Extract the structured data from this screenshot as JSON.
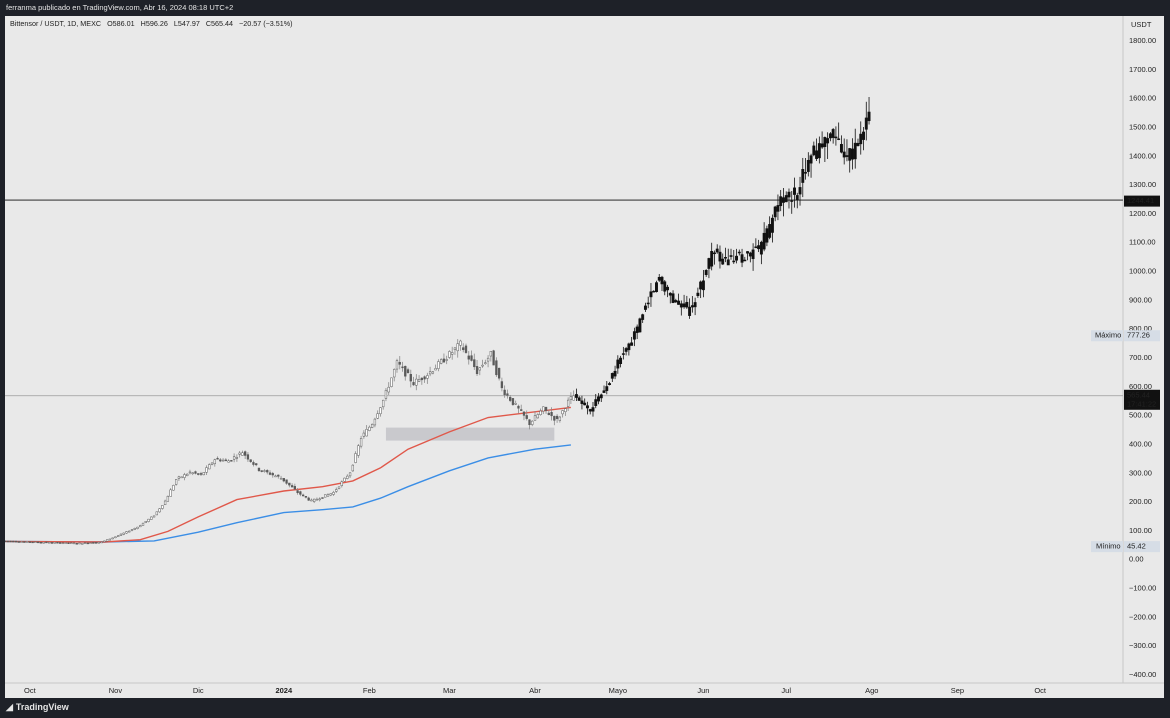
{
  "header": {
    "published_text": "ferranma publicado en TradingView.com, Abr 16, 2024 08:18 UTC+2"
  },
  "legend": {
    "symbol": "Bittensor / USDT, 1D, MEXC",
    "open": "O586.01",
    "high": "H596.26",
    "low": "L547.97",
    "close": "C565.44",
    "change": "−20.57 (−3.51%)"
  },
  "footer": {
    "brand": "TradingView"
  },
  "colors": {
    "background": "#e9e9e9",
    "candles": "#111111",
    "sma_red": "#e0584a",
    "sma_blue": "#3b8ee6",
    "zone": "#c9c9cd",
    "label_dark": "#111111",
    "label_light": "#d6dde6"
  },
  "chart_data": {
    "type": "candlestick",
    "title": "Bittensor / USDT, 1D, MEXC",
    "y_axis_unit": "USDT",
    "y_ticks": [
      1800,
      1700,
      1600,
      1500,
      1400,
      1300,
      1200,
      1100,
      1000,
      900,
      800,
      700,
      600,
      500,
      400,
      300,
      200,
      100,
      0,
      -100,
      -200,
      -300,
      -400
    ],
    "y_tick_labels": [
      "1800.00",
      "1700.00",
      "1600.00",
      "1500.00",
      "1400.00",
      "1300.00",
      "1200.00",
      "1100.00",
      "1000.00",
      "900.00",
      "800.00",
      "700.00",
      "600.00",
      "500.00",
      "400.00",
      "300.00",
      "200.00",
      "100.00",
      "0.00",
      "−100.00",
      "−200.00",
      "−300.00",
      "−400.00"
    ],
    "ylim": [
      -430,
      1880
    ],
    "x_axis_labels": [
      {
        "label": "Oct",
        "date": "2023-10-01"
      },
      {
        "label": "Nov",
        "date": "2023-11-01"
      },
      {
        "label": "Dic",
        "date": "2023-12-01"
      },
      {
        "label": "2024",
        "date": "2024-01-01",
        "bold": true
      },
      {
        "label": "Feb",
        "date": "2024-02-01"
      },
      {
        "label": "Mar",
        "date": "2024-03-01"
      },
      {
        "label": "Abr",
        "date": "2024-04-01"
      },
      {
        "label": "Mayo",
        "date": "2024-05-01"
      },
      {
        "label": "Jun",
        "date": "2024-06-01"
      },
      {
        "label": "Jul",
        "date": "2024-07-01"
      },
      {
        "label": "Ago",
        "date": "2024-08-01"
      },
      {
        "label": "Sep",
        "date": "2024-09-01"
      },
      {
        "label": "Oct",
        "date": "2024-10-01"
      }
    ],
    "x_range": [
      "2023-09-22",
      "2024-10-31"
    ],
    "price_labels": {
      "horizontal_level": {
        "value": 1244.41,
        "label": "1244.41"
      },
      "current": {
        "value": 565.44,
        "label": "565.44",
        "countdown": "17:41:22"
      },
      "max": {
        "value": 777.26,
        "label": "777.26",
        "title": "Máximo"
      },
      "min": {
        "value": 45.42,
        "label": "45.42",
        "title": "Mínimo"
      }
    },
    "zone": {
      "from": "2024-02-07",
      "to": "2024-04-08",
      "low": 410,
      "high": 455
    },
    "historical_path": [
      [
        "2023-09-22",
        62
      ],
      [
        "2023-10-05",
        58
      ],
      [
        "2023-10-20",
        54
      ],
      [
        "2023-10-28",
        58
      ],
      [
        "2023-11-03",
        80
      ],
      [
        "2023-11-10",
        110
      ],
      [
        "2023-11-16",
        150
      ],
      [
        "2023-11-20",
        200
      ],
      [
        "2023-11-24",
        275
      ],
      [
        "2023-11-29",
        300
      ],
      [
        "2023-12-03",
        290
      ],
      [
        "2023-12-08",
        345
      ],
      [
        "2023-12-13",
        340
      ],
      [
        "2023-12-18",
        370
      ],
      [
        "2023-12-24",
        310
      ],
      [
        "2024-01-01",
        280
      ],
      [
        "2024-01-07",
        230
      ],
      [
        "2024-01-12",
        200
      ],
      [
        "2024-01-20",
        230
      ],
      [
        "2024-01-26",
        300
      ],
      [
        "2024-01-30",
        420
      ],
      [
        "2024-02-03",
        470
      ],
      [
        "2024-02-07",
        550
      ],
      [
        "2024-02-12",
        680
      ],
      [
        "2024-02-18",
        610
      ],
      [
        "2024-02-23",
        640
      ],
      [
        "2024-03-01",
        700
      ],
      [
        "2024-03-06",
        745
      ],
      [
        "2024-03-12",
        650
      ],
      [
        "2024-03-17",
        710
      ],
      [
        "2024-03-21",
        590
      ],
      [
        "2024-03-26",
        530
      ],
      [
        "2024-03-31",
        470
      ],
      [
        "2024-04-05",
        520
      ],
      [
        "2024-04-10",
        480
      ],
      [
        "2024-04-14",
        545
      ],
      [
        "2024-04-16",
        565
      ]
    ],
    "projection_path": [
      [
        "2024-04-16",
        565
      ],
      [
        "2024-04-22",
        520
      ],
      [
        "2024-04-28",
        600
      ],
      [
        "2024-05-03",
        700
      ],
      [
        "2024-05-07",
        750
      ],
      [
        "2024-05-13",
        900
      ],
      [
        "2024-05-17",
        975
      ],
      [
        "2024-05-22",
        900
      ],
      [
        "2024-05-28",
        860
      ],
      [
        "2024-06-01",
        950
      ],
      [
        "2024-06-05",
        1060
      ],
      [
        "2024-06-10",
        1030
      ],
      [
        "2024-06-17",
        1050
      ],
      [
        "2024-06-22",
        1070
      ],
      [
        "2024-06-26",
        1150
      ],
      [
        "2024-06-30",
        1250
      ],
      [
        "2024-07-04",
        1250
      ],
      [
        "2024-07-07",
        1290
      ],
      [
        "2024-07-10",
        1400
      ],
      [
        "2024-07-14",
        1420
      ],
      [
        "2024-07-18",
        1480
      ],
      [
        "2024-07-22",
        1420
      ],
      [
        "2024-07-26",
        1400
      ],
      [
        "2024-07-30",
        1480
      ],
      [
        "2024-08-01",
        1540
      ]
    ],
    "sma_red": [
      [
        "2023-09-22",
        60
      ],
      [
        "2023-10-28",
        58
      ],
      [
        "2023-11-10",
        66
      ],
      [
        "2023-11-20",
        95
      ],
      [
        "2023-12-01",
        145
      ],
      [
        "2023-12-15",
        205
      ],
      [
        "2024-01-01",
        235
      ],
      [
        "2024-01-15",
        250
      ],
      [
        "2024-01-26",
        270
      ],
      [
        "2024-02-05",
        315
      ],
      [
        "2024-02-15",
        380
      ],
      [
        "2024-03-01",
        440
      ],
      [
        "2024-03-15",
        490
      ],
      [
        "2024-04-01",
        510
      ],
      [
        "2024-04-14",
        525
      ]
    ],
    "sma_blue": [
      [
        "2023-09-22",
        60
      ],
      [
        "2023-10-28",
        58
      ],
      [
        "2023-11-15",
        62
      ],
      [
        "2023-12-01",
        92
      ],
      [
        "2023-12-15",
        125
      ],
      [
        "2024-01-01",
        160
      ],
      [
        "2024-01-15",
        170
      ],
      [
        "2024-01-26",
        180
      ],
      [
        "2024-02-05",
        210
      ],
      [
        "2024-02-15",
        250
      ],
      [
        "2024-03-01",
        305
      ],
      [
        "2024-03-15",
        350
      ],
      [
        "2024-04-01",
        380
      ],
      [
        "2024-04-14",
        395
      ]
    ],
    "grid": false,
    "legend_position": "top-left"
  }
}
